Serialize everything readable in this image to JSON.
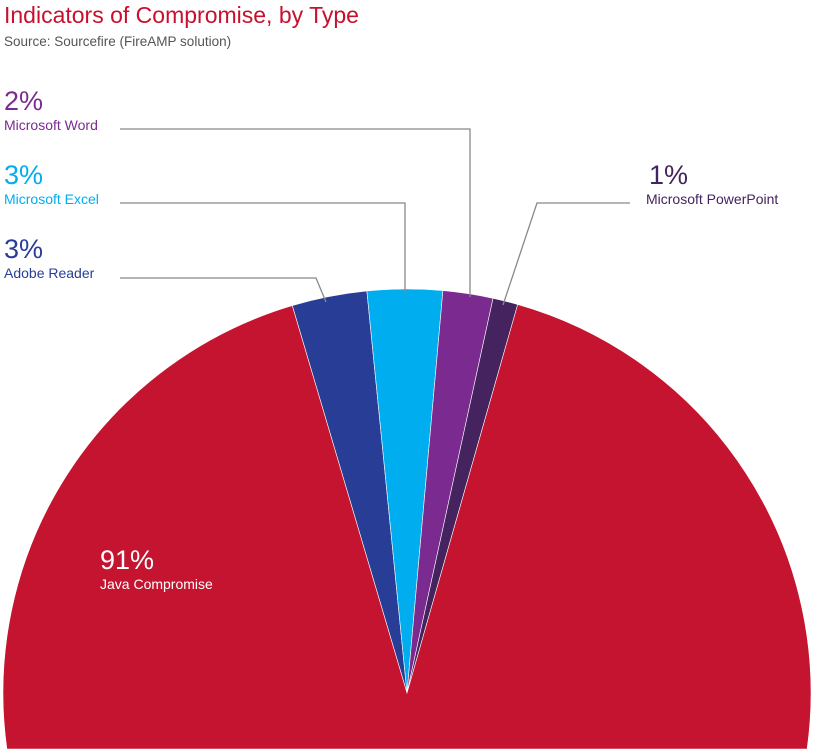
{
  "chart_data": {
    "type": "pie",
    "title": "Indicators of Compromise, by Type",
    "subtitle": "Source: Sourcefire (FireAMP solution)",
    "slices": [
      {
        "label": "Adobe Reader",
        "value": 3,
        "display": "3%",
        "color": "#283D96"
      },
      {
        "label": "Microsoft Excel",
        "value": 3,
        "display": "3%",
        "color": "#00AEEF"
      },
      {
        "label": "Microsoft Word",
        "value": 2,
        "display": "2%",
        "color": "#7B2B8F"
      },
      {
        "label": "Microsoft PowerPoint",
        "value": 1,
        "display": "1%",
        "color": "#44235F"
      },
      {
        "label": "Java Compromise",
        "value": 91,
        "display": "91%",
        "color": "#C4142F"
      }
    ]
  }
}
